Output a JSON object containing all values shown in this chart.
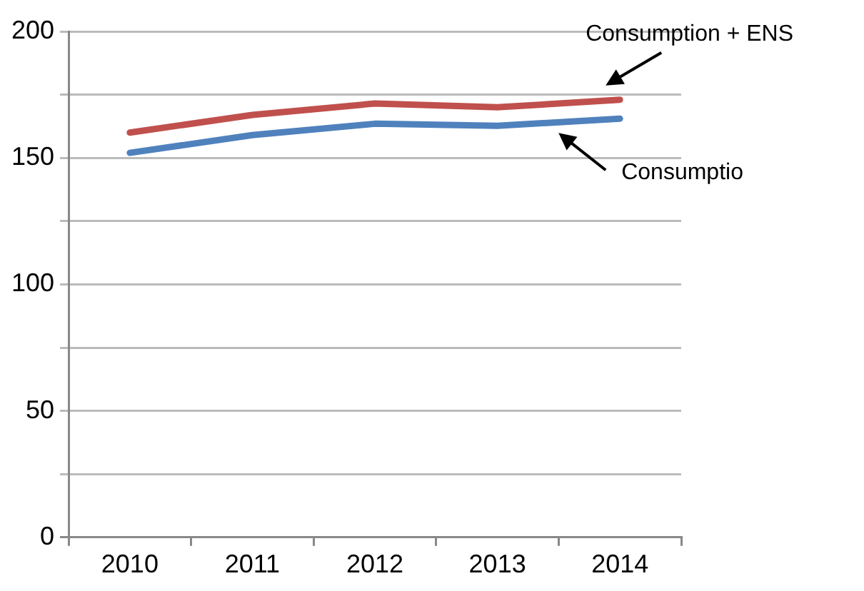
{
  "chart_data": {
    "type": "line",
    "categories": [
      "2010",
      "2011",
      "2012",
      "2013",
      "2014"
    ],
    "series": [
      {
        "name": "Consumption + ENS",
        "color": "#c0504d",
        "values": [
          160,
          167,
          171.5,
          170,
          173
        ]
      },
      {
        "name": "Consumptio",
        "color": "#4f81bd",
        "values": [
          152,
          159,
          163.5,
          162.7,
          165.5
        ]
      }
    ],
    "ylim": [
      0,
      200
    ],
    "yticks": [
      0,
      {
        "value": 25,
        "label": null
      },
      50,
      {
        "value": 75,
        "label": null
      },
      100,
      {
        "value": 125,
        "label": null
      },
      150,
      {
        "value": 175,
        "label": null
      },
      200
    ],
    "grid": "y",
    "legend": false,
    "marker": "none",
    "line_style": "solid"
  }
}
